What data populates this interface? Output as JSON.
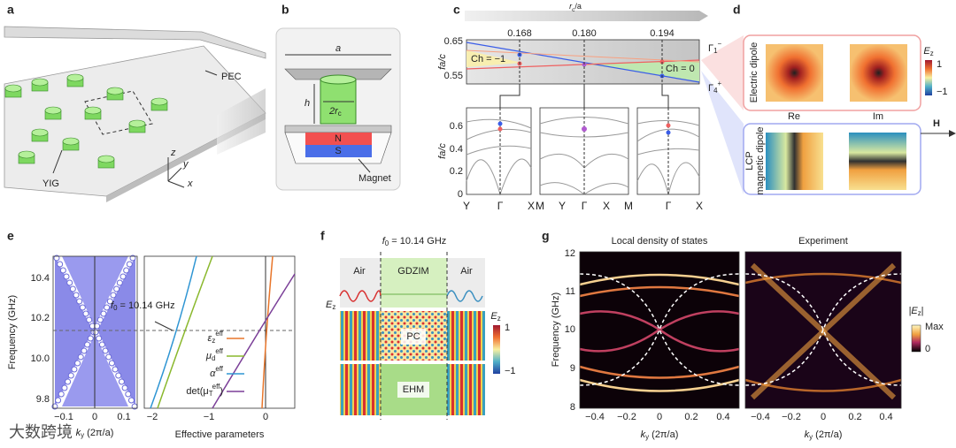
{
  "watermark": "大数跨境",
  "panel_labels": [
    "a",
    "b",
    "c",
    "d",
    "e",
    "f",
    "g"
  ],
  "a": {
    "pec": "PEC",
    "yig": "YIG",
    "axes": [
      "z",
      "y",
      "x"
    ]
  },
  "b": {
    "a": "a",
    "h": "h",
    "radius": {
      "base": "2r",
      "sub": "c"
    },
    "n": "N",
    "s": "S",
    "magnet": "Magnet"
  },
  "c": {
    "top_axis": {
      "base": "r",
      "sub": "c",
      "rest": "/a"
    },
    "top_ticks": [
      "0.168",
      "0.180",
      "0.194"
    ],
    "yticks": [
      "0.65",
      "0.55"
    ],
    "ylabel": "fa/c",
    "ch_neg": "Ch = −1",
    "ch_zero": "Ch = 0",
    "gamma1": {
      "base": "Γ",
      "sub": "1",
      "sup": "−"
    },
    "gamma4": {
      "base": "Γ",
      "sub": "4",
      "sup": "+"
    },
    "bands_ylabel": "fa/c",
    "bands_yticks": [
      "0.6",
      "0.4",
      "0.2",
      "0"
    ],
    "bands_xlabels": [
      "Y",
      "Γ",
      "X",
      "M",
      "Y",
      "Γ",
      "X",
      "M",
      "Γ",
      "X"
    ]
  },
  "d": {
    "colorbar_label": {
      "base": "E",
      "sub": "z"
    },
    "colorbar_ticks": [
      "1",
      "−1"
    ],
    "electric": "Electric dipole",
    "re": "Re",
    "im": "Im",
    "magnetic": [
      "LCP",
      "magnetic dipole"
    ],
    "h": "H"
  },
  "e": {
    "ylabel": "Frequency (GHz)",
    "yticks": [
      "10.4",
      "10.2",
      "10.0",
      "9.8"
    ],
    "left_xticks": [
      "−0.1",
      "0",
      "0.1"
    ],
    "xlabel": {
      "base": "k",
      "sub": "y",
      "rest": " (2π/a)"
    },
    "f0": {
      "base": "f",
      "sub": "0",
      "rest": " = 10.14 GHz"
    },
    "right_xticks": [
      "−2",
      "−1",
      "0"
    ],
    "right_xlabel": "Effective parameters",
    "legend": [
      {
        "base": "ε",
        "sub": "z",
        "sup": "eff",
        "color": "#e8762b"
      },
      {
        "base": "μ",
        "sub": "d",
        "sup": "eff",
        "color": "#8ab82d"
      },
      {
        "base": "α",
        "sup": "eff",
        "color": "#2e95d3"
      },
      {
        "base": "det(μ",
        "sub": "T",
        "sup": "eff",
        "rest": ")",
        "color": "#7b3f98"
      }
    ]
  },
  "f": {
    "f0": {
      "base": "f",
      "sub": "0",
      "rest": " = 10.14 GHz"
    },
    "air": [
      "Air",
      "Air"
    ],
    "gdzim": "GDZIM",
    "pc": "PC",
    "ehm": "EHM",
    "field_label": {
      "base": "E",
      "sub": "z"
    },
    "colorbar_label": {
      "base": "E",
      "sub": "z"
    },
    "colorbar_ticks": [
      "1",
      "−1"
    ]
  },
  "g": {
    "titles": [
      "Local density of states",
      "Experiment"
    ],
    "ylabel": "Frequency (GHz)",
    "yticks": [
      "12",
      "11",
      "10",
      "9",
      "8"
    ],
    "xticks": [
      "−0.4",
      "−0.2",
      "0",
      "0.2",
      "0.4"
    ],
    "xlabel": {
      "base": "k",
      "sub": "y",
      "rest": " (2π/a)"
    },
    "colorbar_label": {
      "base": "|E",
      "sub": "z",
      "rest": "|"
    },
    "colorbar_ticks": [
      "Max",
      "0"
    ]
  }
}
